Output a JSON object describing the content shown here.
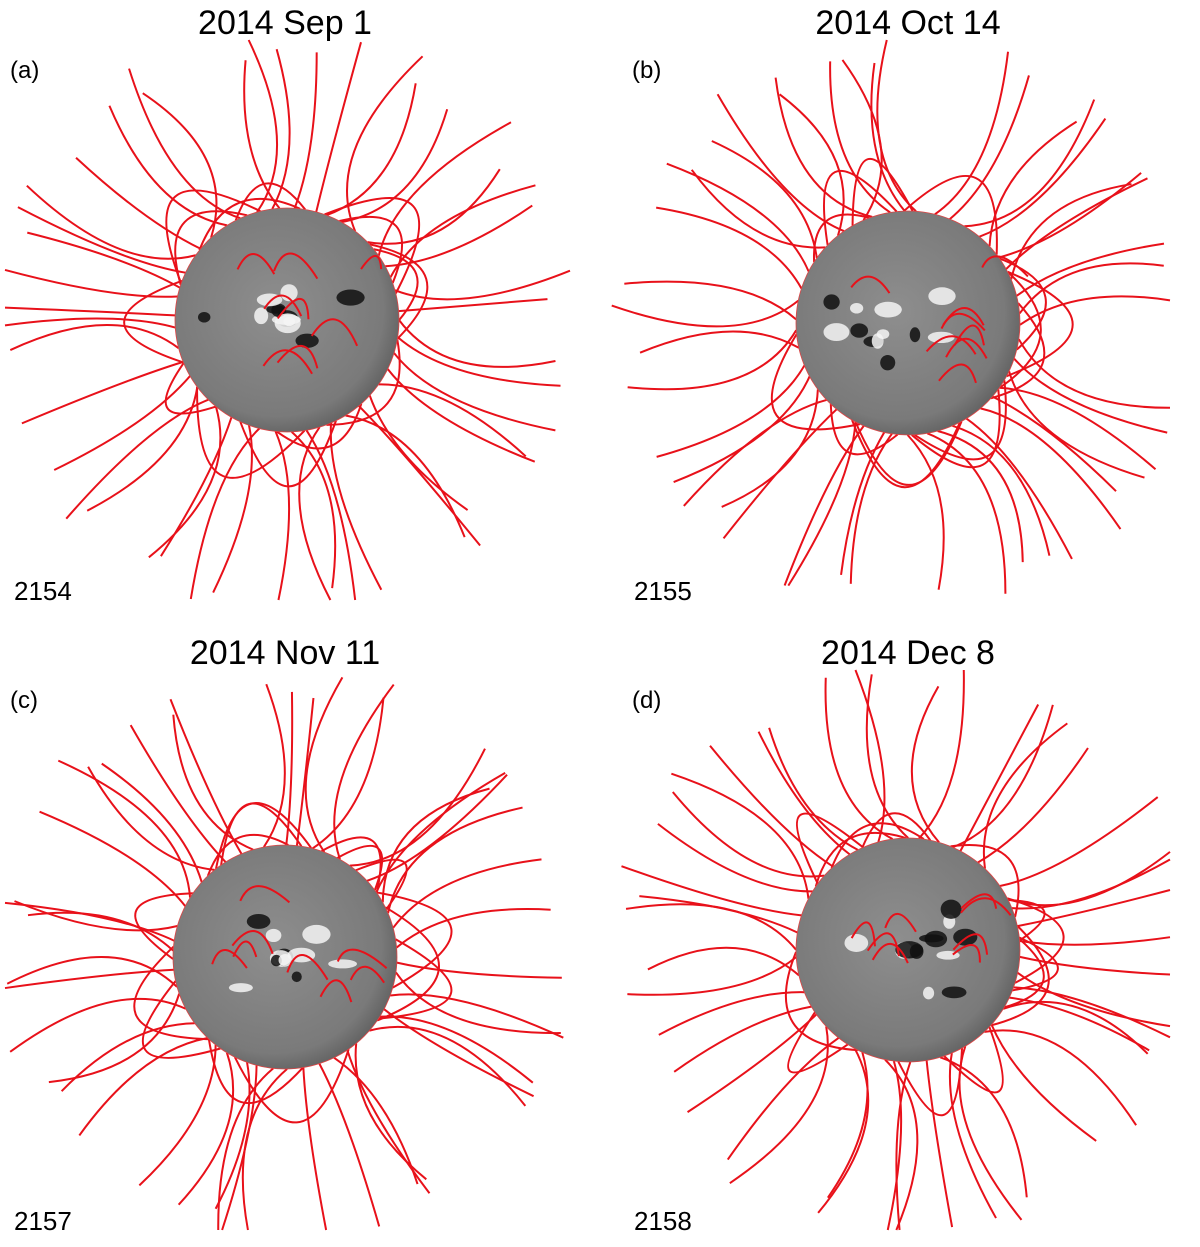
{
  "panels": [
    {
      "title": "2014 Sep 1",
      "label": "(a)",
      "rotation": "2154"
    },
    {
      "title": "2014 Oct 14",
      "label": "(b)",
      "rotation": "2155"
    },
    {
      "title": "2014 Nov 11",
      "label": "(c)",
      "rotation": "2157"
    },
    {
      "title": "2014 Dec 8",
      "label": "(d)",
      "rotation": "2158"
    }
  ]
}
